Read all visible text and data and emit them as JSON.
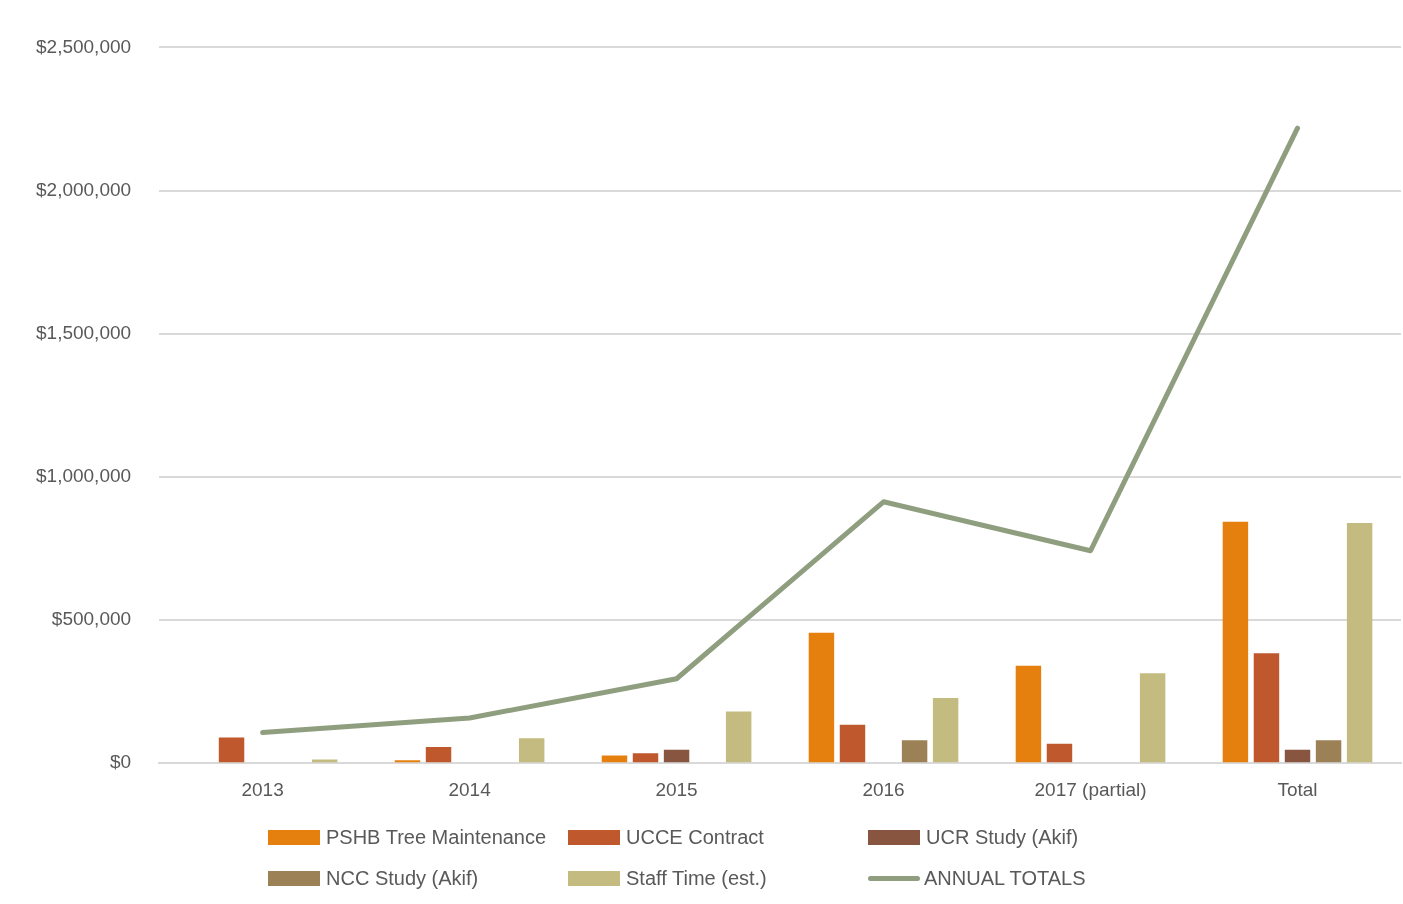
{
  "chart_data": {
    "type": "bar",
    "categories": [
      "2013",
      "2014",
      "2015",
      "2016",
      "2017 (partial)",
      "Total"
    ],
    "series": [
      {
        "name": "PSHB Tree Maintenance",
        "color": "#e5800f",
        "values": [
          null,
          10000,
          27000,
          456000,
          340000,
          843000
        ]
      },
      {
        "name": "UCCE Contract",
        "color": "#bf582c",
        "values": [
          90000,
          57000,
          35000,
          134000,
          68000,
          384000
        ]
      },
      {
        "name": "UCR Study (Akif)",
        "color": "#875540",
        "values": [
          null,
          null,
          47000,
          null,
          null,
          47000
        ]
      },
      {
        "name": "NCC Study (Akif)",
        "color": "#9c8156",
        "values": [
          null,
          null,
          null,
          80000,
          null,
          80000
        ]
      },
      {
        "name": "Staff Time (est.)",
        "color": "#c3bb80",
        "values": [
          13000,
          87000,
          181000,
          228000,
          314000,
          839000
        ]
      },
      {
        "name": "ANNUAL TOTALS",
        "type": "line",
        "color": "#8f9e7f",
        "values": [
          107000,
          158000,
          295000,
          913000,
          742000,
          2218000
        ]
      }
    ],
    "ylim": [
      0,
      2500000
    ],
    "yticks": [
      {
        "value": 0,
        "label": "$0"
      },
      {
        "value": 500000,
        "label": "$500,000"
      },
      {
        "value": 1000000,
        "label": "$1,000,000"
      },
      {
        "value": 1500000,
        "label": "$1,500,000"
      },
      {
        "value": 2000000,
        "label": "$2,000,000"
      },
      {
        "value": 2500000,
        "label": "$2,500,000"
      }
    ],
    "grid": "y",
    "legend": "bottom",
    "marker": "none"
  }
}
